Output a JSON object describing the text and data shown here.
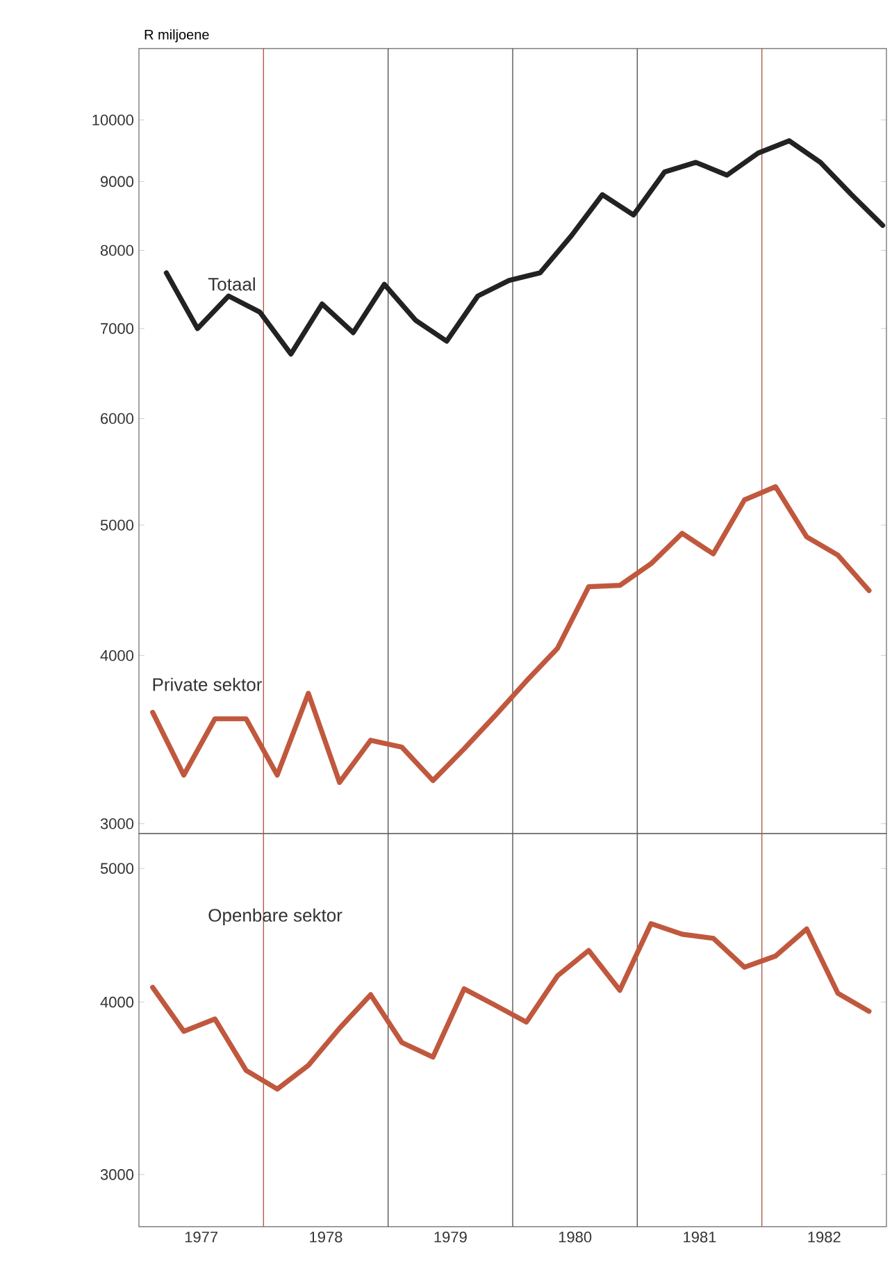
{
  "chart_data": [
    {
      "type": "line",
      "ylabel": "R miljoene",
      "log": true,
      "xlim": [
        1976.5,
        1982.5
      ],
      "ylim": [
        2950,
        11300
      ],
      "yticks": [
        3000,
        4000,
        5000,
        6000,
        7000,
        8000,
        9000,
        10000
      ],
      "xticks": [
        1977,
        1978,
        1979,
        1980,
        1981,
        1982
      ],
      "tick_labels": "y",
      "ref_lines": [
        {
          "axis": "x",
          "value": 1977.5,
          "color": "#b05a4a"
        },
        {
          "axis": "x",
          "value": 1978.5,
          "color": "#555555"
        },
        {
          "axis": "x",
          "value": 1979.5,
          "color": "#555555"
        },
        {
          "axis": "x",
          "value": 1980.5,
          "color": "#555555"
        },
        {
          "axis": "x",
          "value": 1981.5,
          "color": "#b05a4a"
        }
      ],
      "series": [
        {
          "name": "Totaal",
          "color": "#222222",
          "x": [
            1976.72,
            1976.97,
            1977.22,
            1977.47,
            1977.72,
            1977.97,
            1978.22,
            1978.47,
            1978.72,
            1978.97,
            1979.22,
            1979.47,
            1979.72,
            1979.97,
            1980.22,
            1980.47,
            1980.72,
            1980.97,
            1981.22,
            1981.47,
            1981.72,
            1981.97,
            1982.22,
            1982.47
          ],
          "values": [
            7700,
            7000,
            7400,
            7200,
            6700,
            7300,
            6950,
            7550,
            7100,
            6850,
            7400,
            7600,
            7700,
            8200,
            8800,
            8500,
            9150,
            9300,
            9100,
            9450,
            9650,
            9300,
            8800,
            8350
          ]
        },
        {
          "name": "Private sektor",
          "color": "#c0583e",
          "x": [
            1976.61,
            1976.86,
            1977.11,
            1977.36,
            1977.61,
            1977.86,
            1978.11,
            1978.36,
            1978.61,
            1978.86,
            1979.11,
            1979.36,
            1979.61,
            1979.86,
            1980.11,
            1980.36,
            1980.61,
            1980.86,
            1981.11,
            1981.36,
            1981.61,
            1981.86,
            1982.11,
            1982.36
          ],
          "values": [
            3630,
            3260,
            3590,
            3590,
            3260,
            3750,
            3220,
            3460,
            3420,
            3230,
            3410,
            3610,
            3830,
            4050,
            4500,
            4510,
            4680,
            4930,
            4760,
            5220,
            5340,
            4900,
            4750,
            4470
          ]
        }
      ]
    },
    {
      "type": "line",
      "log": true,
      "xlim": [
        1976.5,
        1982.5
      ],
      "ylim": [
        2750,
        5300
      ],
      "yticks": [
        3000,
        4000,
        5000
      ],
      "xticks": [
        1977,
        1978,
        1979,
        1980,
        1981,
        1982
      ],
      "ref_lines": [
        {
          "axis": "x",
          "value": 1977.5,
          "color": "#b05a4a"
        },
        {
          "axis": "x",
          "value": 1978.5,
          "color": "#555555"
        },
        {
          "axis": "x",
          "value": 1979.5,
          "color": "#555555"
        },
        {
          "axis": "x",
          "value": 1980.5,
          "color": "#555555"
        },
        {
          "axis": "x",
          "value": 1981.5,
          "color": "#b05a4a"
        }
      ],
      "series": [
        {
          "name": "Openbare sektor",
          "color": "#c0583e",
          "x": [
            1976.61,
            1976.86,
            1977.11,
            1977.36,
            1977.61,
            1977.86,
            1978.11,
            1978.36,
            1978.61,
            1978.86,
            1979.11,
            1979.36,
            1979.61,
            1979.86,
            1980.11,
            1980.36,
            1980.61,
            1980.86,
            1981.11,
            1981.36,
            1981.61,
            1981.86,
            1982.11,
            1982.36
          ],
          "values": [
            4100,
            3810,
            3890,
            3570,
            3460,
            3600,
            3830,
            4050,
            3740,
            3650,
            4090,
            3980,
            3870,
            4180,
            4360,
            4080,
            4560,
            4480,
            4450,
            4240,
            4320,
            4520,
            4060,
            3940
          ]
        }
      ]
    }
  ]
}
